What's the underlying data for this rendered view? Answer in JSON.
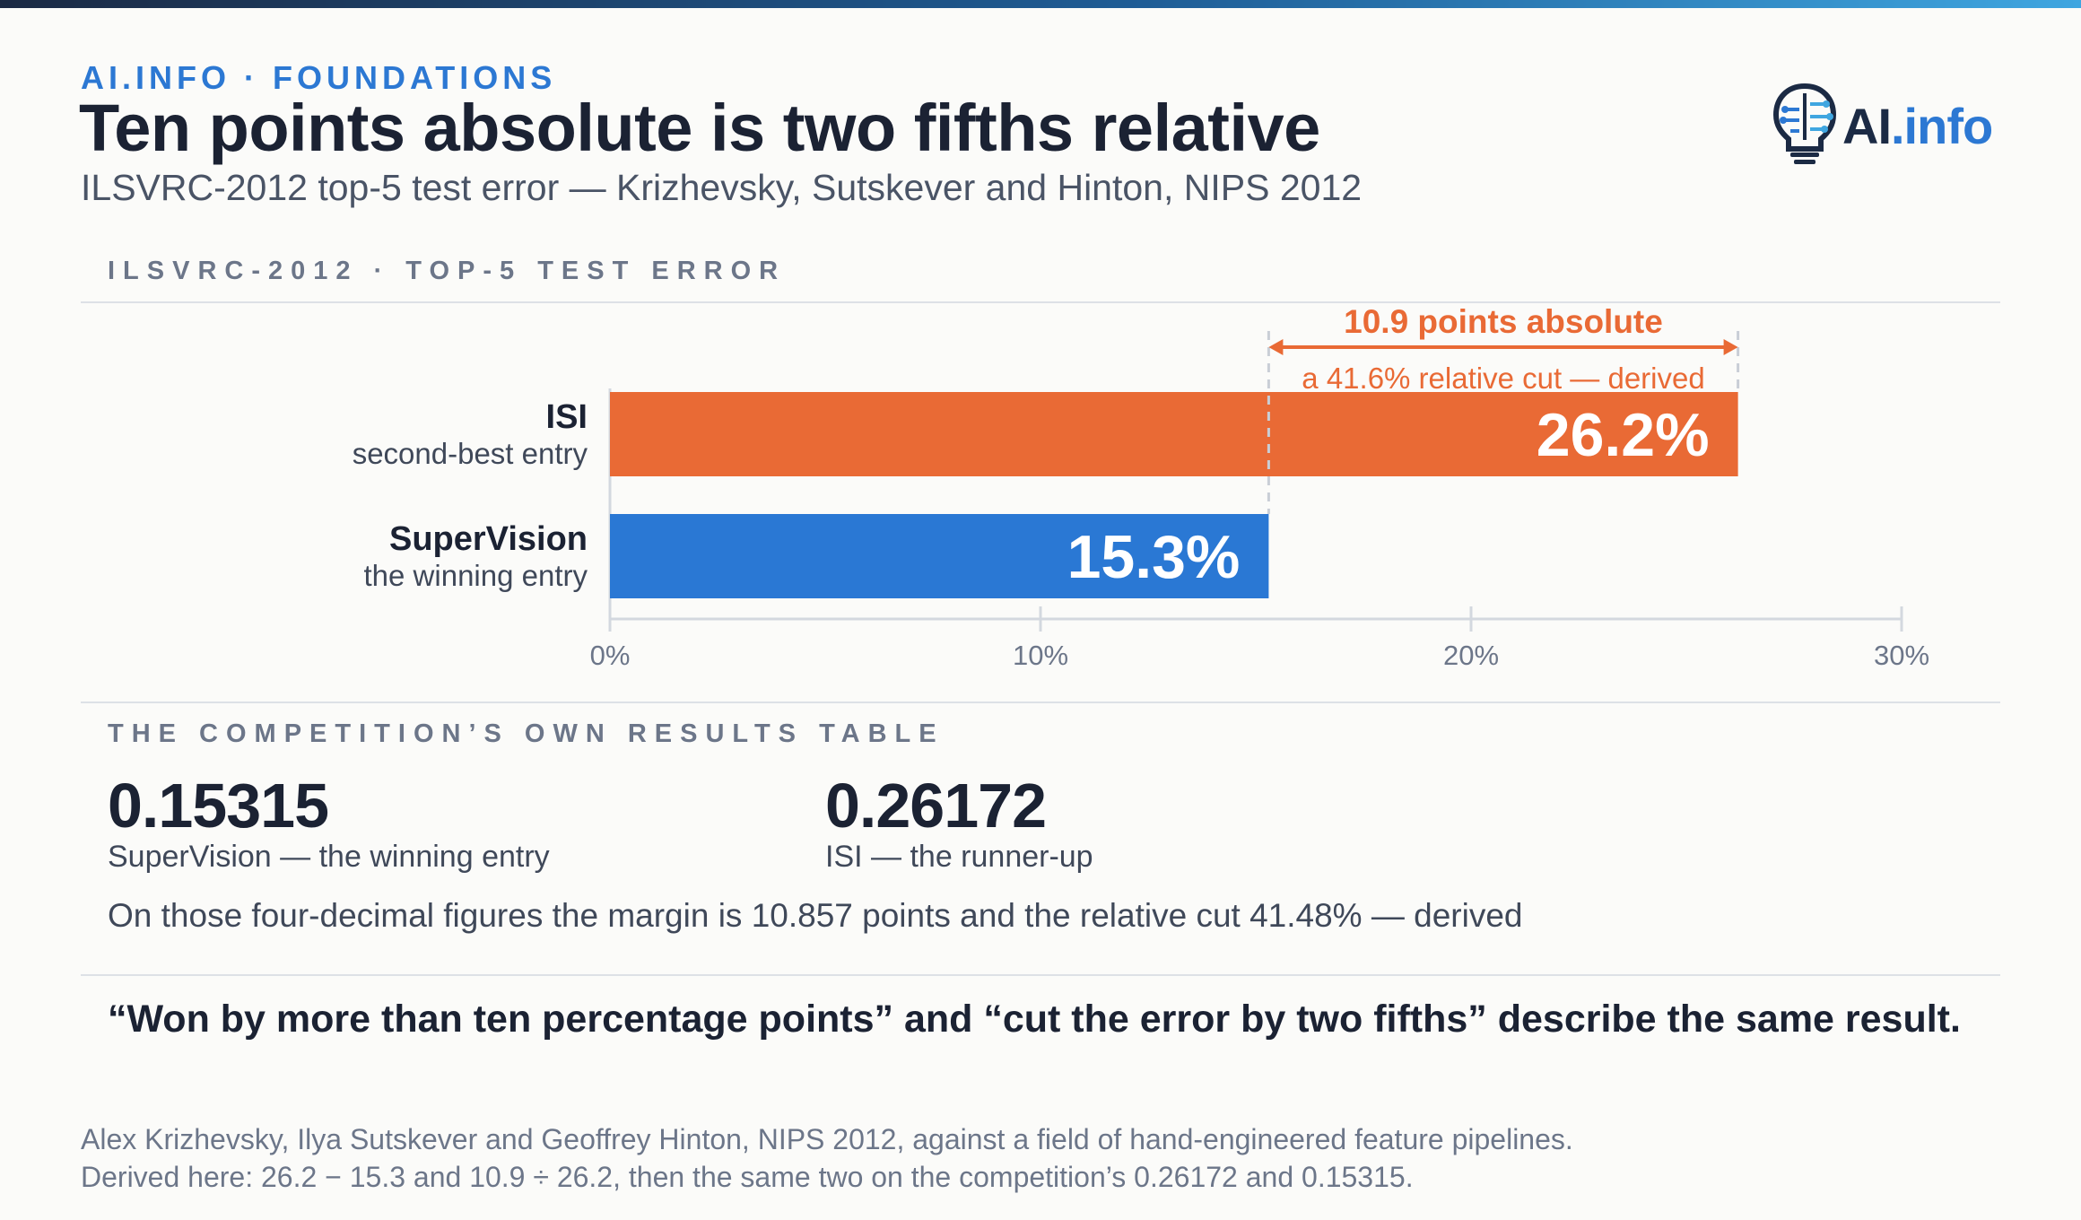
{
  "header": {
    "kicker": "AI.INFO · FOUNDATIONS",
    "title": "Ten points absolute is two fifths relative",
    "subtitle": "ILSVRC-2012 top-5 test error — Krizhevsky, Sutskever and Hinton, NIPS 2012",
    "logo_text_main": "AI",
    "logo_text_suffix": ".info"
  },
  "colors": {
    "accent_orange": "#e96a35",
    "accent_blue": "#2a78d4",
    "ink": "#1b2233"
  },
  "chart_section_label": "ILSVRC-2012 · TOP-5 TEST ERROR",
  "chart_data": {
    "type": "bar",
    "orientation": "horizontal",
    "categories": [
      "ISI",
      "SuperVision"
    ],
    "category_subtitles": [
      "second-best entry",
      "the winning entry"
    ],
    "values": [
      26.2,
      15.3
    ],
    "value_labels": [
      "26.2%",
      "15.3%"
    ],
    "bar_colors": [
      "#e96a35",
      "#2a78d4"
    ],
    "xlim": [
      0,
      30
    ],
    "xticks": [
      0,
      10,
      20,
      30
    ],
    "xtick_labels": [
      "0%",
      "10%",
      "20%",
      "30%"
    ],
    "annotation": {
      "from": 15.3,
      "to": 26.2,
      "label": "10.9 points absolute",
      "sublabel": "a 41.6% relative cut — derived"
    }
  },
  "results": {
    "section_label": "THE COMPETITION’S OWN RESULTS TABLE",
    "items": [
      {
        "value": "0.15315",
        "caption": "SuperVision — the winning entry"
      },
      {
        "value": "0.26172",
        "caption": "ISI — the runner-up"
      }
    ],
    "derived_note": "On those four-decimal figures the margin is 10.857 points and the relative cut 41.48% — derived"
  },
  "quote": "“Won by more than ten percentage points” and “cut the error by two fifths” describe the same result.",
  "footnotes": [
    "Alex Krizhevsky, Ilya Sutskever and Geoffrey Hinton, NIPS 2012, against a field of hand-engineered feature pipelines.",
    "Derived here: 26.2 − 15.3 and 10.9 ÷ 26.2, then the same two on the competition’s 0.26172 and 0.15315."
  ]
}
